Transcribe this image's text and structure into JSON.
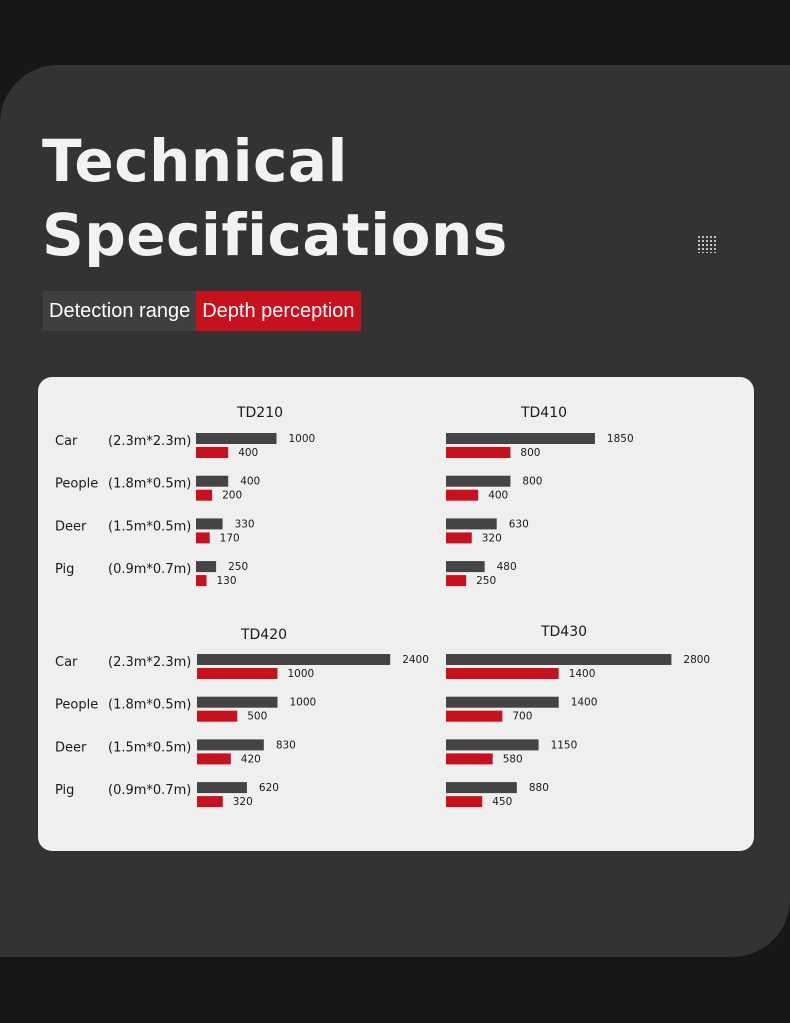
{
  "title_lines": [
    "Technical",
    "Specifications"
  ],
  "tabs": [
    "Detection range",
    "Depth perception"
  ],
  "colors": {
    "background": "#171719",
    "panel": "#333335",
    "card": "#efefef",
    "detection_bar": "#444446",
    "depth_bar": "#c8111d"
  },
  "chart_data": [
    {
      "type": "bar",
      "orientation": "horizontal",
      "title": "TD210",
      "categories": [
        "Car",
        "People",
        "Deer",
        "Pig"
      ],
      "category_sizes": [
        "(2.3m*2.3m)",
        "(1.8m*0.5m)",
        "(1.5m*0.5m)",
        "(0.9m*0.7m)"
      ],
      "series": [
        {
          "name": "Detection range",
          "values": [
            1000,
            400,
            330,
            250
          ]
        },
        {
          "name": "Depth perception",
          "values": [
            400,
            200,
            170,
            130
          ]
        }
      ]
    },
    {
      "type": "bar",
      "orientation": "horizontal",
      "title": "TD410",
      "categories": [
        "Car",
        "People",
        "Deer",
        "Pig"
      ],
      "category_sizes": [
        "(2.3m*2.3m)",
        "(1.8m*0.5m)",
        "(1.5m*0.5m)",
        "(0.9m*0.7m)"
      ],
      "series": [
        {
          "name": "Detection range",
          "values": [
            1850,
            800,
            630,
            480
          ]
        },
        {
          "name": "Depth perception",
          "values": [
            800,
            400,
            320,
            250
          ]
        }
      ]
    },
    {
      "type": "bar",
      "orientation": "horizontal",
      "title": "TD420",
      "categories": [
        "Car",
        "People",
        "Deer",
        "Pig"
      ],
      "category_sizes": [
        "(2.3m*2.3m)",
        "(1.8m*0.5m)",
        "(1.5m*0.5m)",
        "(0.9m*0.7m)"
      ],
      "series": [
        {
          "name": "Detection range",
          "values": [
            2400,
            1000,
            830,
            620
          ]
        },
        {
          "name": "Depth perception",
          "values": [
            1000,
            500,
            420,
            320
          ]
        }
      ]
    },
    {
      "type": "bar",
      "orientation": "horizontal",
      "title": "TD430",
      "categories": [
        "Car",
        "People",
        "Deer",
        "Pig"
      ],
      "category_sizes": [
        "(2.3m*2.3m)",
        "(1.8m*0.5m)",
        "(1.5m*0.5m)",
        "(0.9m*0.7m)"
      ],
      "series": [
        {
          "name": "Detection range",
          "values": [
            2800,
            1400,
            1150,
            880
          ]
        },
        {
          "name": "Depth perception",
          "values": [
            1400,
            700,
            580,
            450
          ]
        }
      ]
    }
  ]
}
